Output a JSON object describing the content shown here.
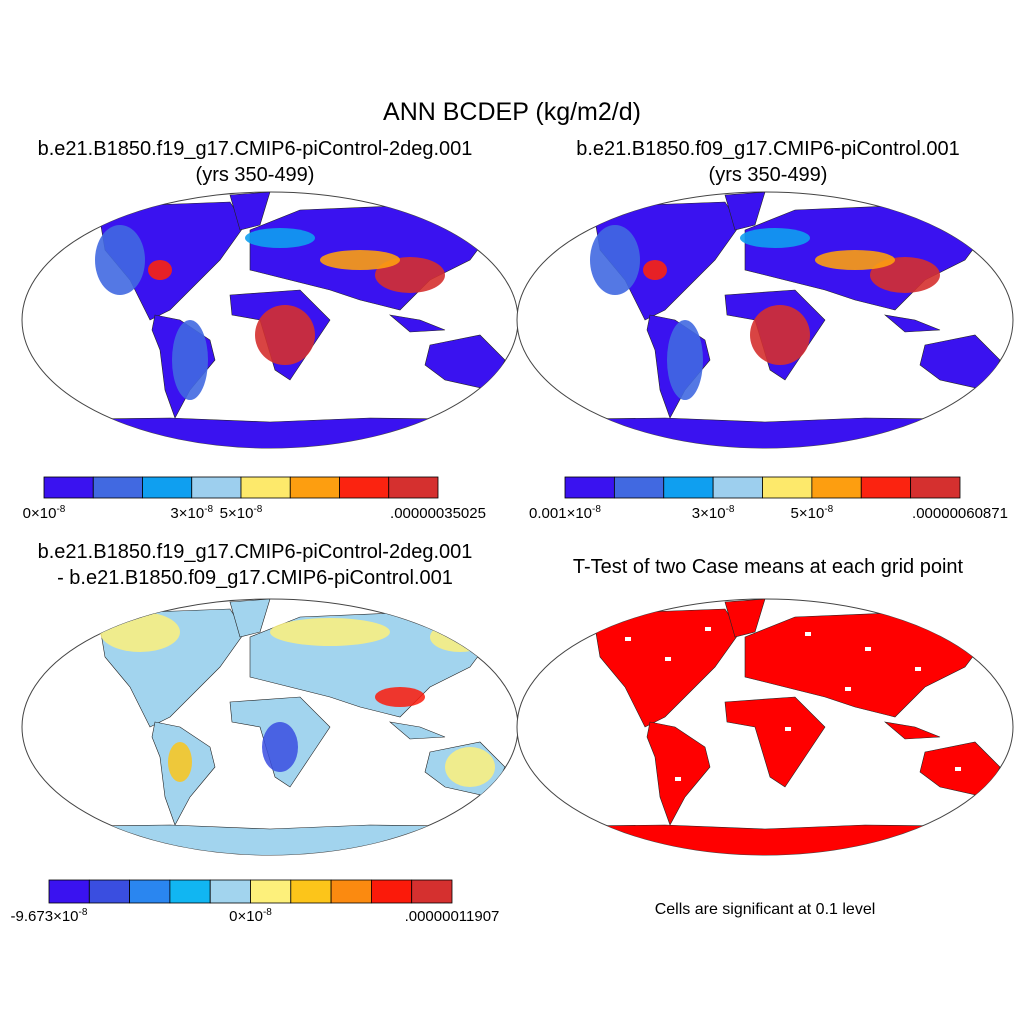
{
  "title": "ANN BCDEP (kg/m2/d)",
  "panels": [
    {
      "title_lines": [
        "b.e21.B1850.f19_g17.CMIP6-piControl-2deg.001",
        "(yrs 350-499)"
      ],
      "colorbar": {
        "colors": [
          "#3a12f0",
          "#4169e1",
          "#0f9ff0",
          "#9dcfee",
          "#fde96b",
          "#fd9e10",
          "#fb2310",
          "#d5302f"
        ],
        "labels": [
          {
            "base": "0×10",
            "exp": "-8"
          },
          {
            "base": "3×10",
            "exp": "-8"
          },
          {
            "base": "5×10",
            "exp": "-8"
          },
          {
            "base": ".00000035025"
          }
        ]
      }
    },
    {
      "title_lines": [
        "b.e21.B1850.f09_g17.CMIP6-piControl.001",
        "(yrs 350-499)"
      ],
      "colorbar": {
        "colors": [
          "#3a12f0",
          "#4169e1",
          "#0f9ff0",
          "#9dcfee",
          "#fde96b",
          "#fd9e10",
          "#fb2310",
          "#d5302f"
        ],
        "labels": [
          {
            "base": "0.001×10",
            "exp": "-8"
          },
          {
            "base": "3×10",
            "exp": "-8"
          },
          {
            "base": "5×10",
            "exp": "-8"
          },
          {
            "base": ".00000060871"
          }
        ]
      }
    },
    {
      "title_lines": [
        "b.e21.B1850.f19_g17.CMIP6-piControl-2deg.001",
        "- b.e21.B1850.f09_g17.CMIP6-piControl.001"
      ],
      "colorbar": {
        "colors": [
          "#3a12f0",
          "#3a4ee0",
          "#2a86f0",
          "#11b6f2",
          "#a2d4ee",
          "#fdf07b",
          "#fcc51a",
          "#fb8a10",
          "#fb1a0a",
          "#d5302f"
        ],
        "labels": [
          {
            "base": "-9.673×10",
            "exp": "-8"
          },
          {
            "base": "0×10",
            "exp": "-8"
          },
          {
            "base": ".00000011907"
          }
        ]
      }
    },
    {
      "title_lines": [
        "T-Test of two Case means at each grid point"
      ],
      "note": "Cells are significant at 0.1 level"
    }
  ]
}
